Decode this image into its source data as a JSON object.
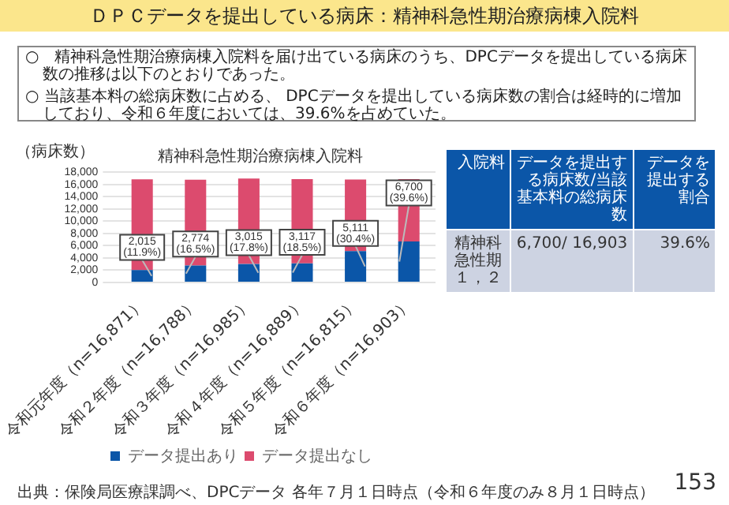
{
  "chart_data": {
    "type": "bar",
    "title": "ＤＰＣデータを提出している病床：精神科急性期治療病棟入院料",
    "subtitle": "精神科急性期治療病棟入院料",
    "ylabel": "（病床数）",
    "categories": [
      "令和元年度（n=16,871）",
      "令和２年度（n=16,788）",
      "令和３年度（n=16,985）",
      "令和４年度（n=16,889）",
      "令和５年度（n=16,815）",
      "令和６年度（n=16,903）"
    ],
    "series": [
      {
        "name": "データ提出あり",
        "color": "#0b56a8",
        "values": [
          2015,
          2774,
          3015,
          3117,
          5111,
          6700
        ],
        "value_labels": [
          "2,015\n(11.9%)",
          "2,774\n(16.5%)",
          "3,015\n(17.8%)",
          "3,117\n(18.5%)",
          "5,111\n(30.4%)",
          "6,700\n(39.6%)"
        ]
      },
      {
        "name": "データ提出なし",
        "color": "#dc4b6e",
        "values": [
          14856,
          14014,
          13970,
          13772,
          11704,
          10203
        ]
      }
    ],
    "stacked": true,
    "ylim": [
      0,
      18000
    ],
    "yticks": [
      {
        "value": 0,
        "label": "0"
      },
      {
        "value": 2000,
        "label": "2,000"
      },
      {
        "value": 4000,
        "label": "4,000"
      },
      {
        "value": 6000,
        "label": "6,000"
      },
      {
        "value": 8000,
        "label": "8,000"
      },
      {
        "value": 10000,
        "label": "10,000"
      },
      {
        "value": 12000,
        "label": "12,000"
      },
      {
        "value": 14000,
        "label": "14,000"
      },
      {
        "value": 16000,
        "label": "16,000"
      },
      {
        "value": 18000,
        "label": "18,000"
      }
    ],
    "grid": "y",
    "legend": "bottom",
    "annotations": [
      "○　精神科急性期治療病棟入院料を届け出ている病床のうち、DPCデータを提出している病床数の推移は以下のとおりであった。",
      "○ 当該基本料の総病床数に占める、 DPCデータを提出している病床数の割合は経時的に増加しており、令和６年度においては、39.6%を占めていた。",
      "入院料",
      "データを提出する病床数/当該基本料の総病床数",
      "データを提出する割合",
      "精神科急性期１，２",
      "6,700/ 16,903",
      "39.6%",
      "出典：保険局医療課調べ、DPCデータ 各年７月１日時点（令和６年度のみ８月１日時点）",
      "153"
    ]
  }
}
